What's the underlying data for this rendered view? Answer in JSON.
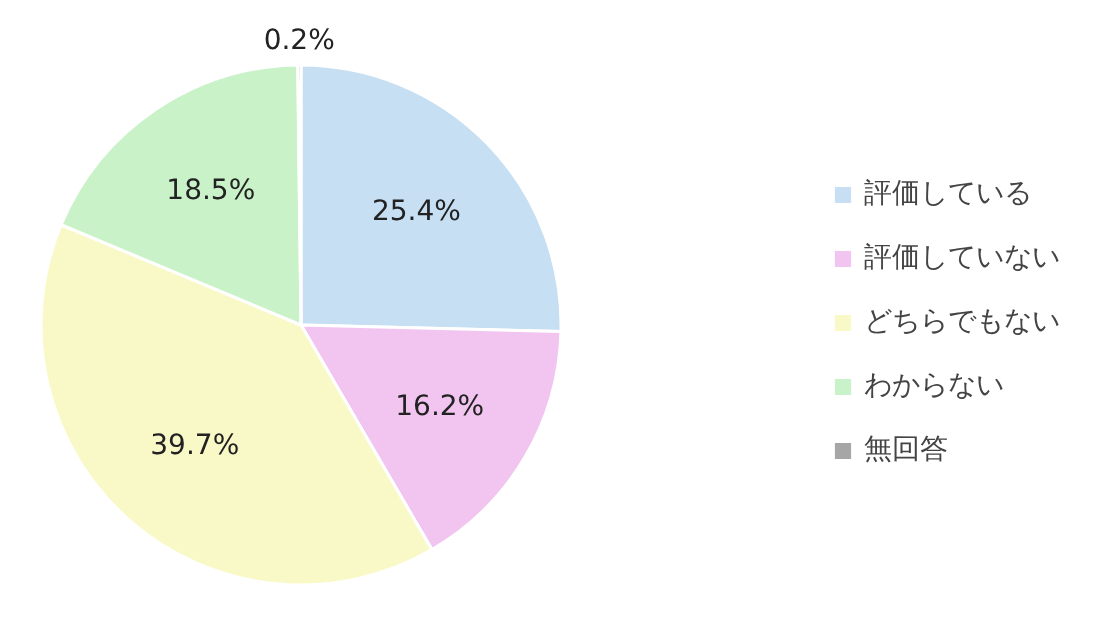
{
  "chart_data": {
    "type": "pie",
    "categories": [
      "評価している",
      "評価していない",
      "どちらでもない",
      "わからない",
      "無回答"
    ],
    "values": [
      25.4,
      16.2,
      39.7,
      18.5,
      0.2
    ],
    "colors": [
      "#c6dff2",
      "#f2c4f0",
      "#f9f9c8",
      "#c9f2c9",
      "#a6a6a6"
    ],
    "value_labels": [
      "25.4%",
      "16.2%",
      "39.7%",
      "18.5%",
      "0.2%"
    ],
    "legend": "right"
  }
}
